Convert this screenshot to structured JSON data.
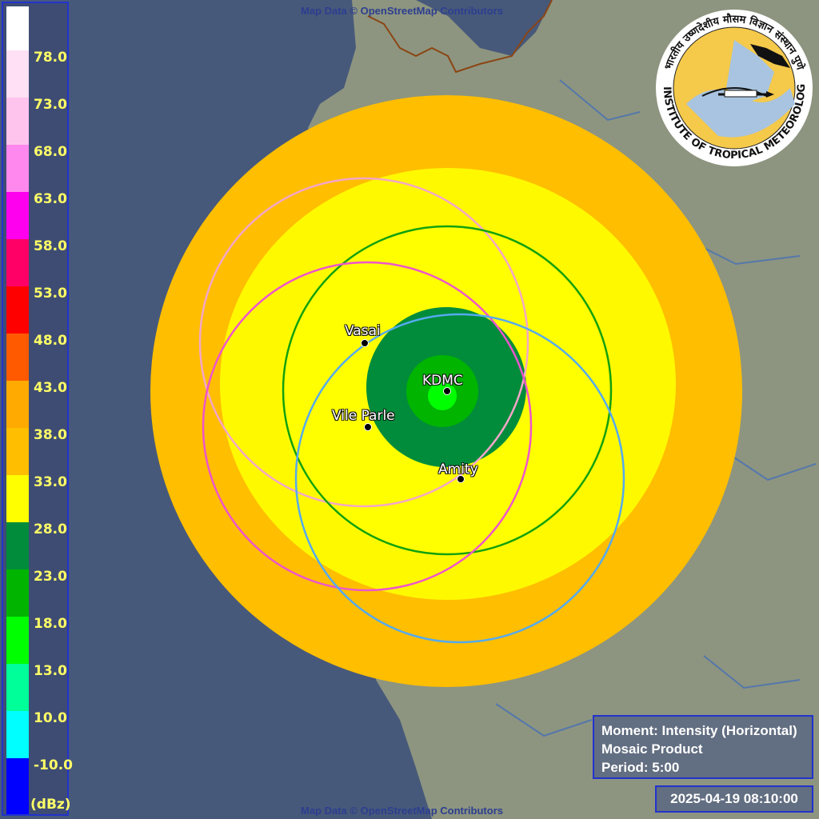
{
  "attribution": "Map Data © OpenStreetMap Contributors",
  "legend": {
    "unit": "(dBz)",
    "levels": [
      {
        "label": "78.0",
        "color": "#ffffff"
      },
      {
        "label": "73.0",
        "color": "#ffe0f4"
      },
      {
        "label": "68.0",
        "color": "#ffc4ee"
      },
      {
        "label": "63.0",
        "color": "#ff88ee"
      },
      {
        "label": "58.0",
        "color": "#ff00ee"
      },
      {
        "label": "53.0",
        "color": "#ff0066"
      },
      {
        "label": "48.0",
        "color": "#ff0000"
      },
      {
        "label": "43.0",
        "color": "#ff5a00"
      },
      {
        "label": "38.0",
        "color": "#ffaa00"
      },
      {
        "label": "33.0",
        "color": "#ffbe00"
      },
      {
        "label": "28.0",
        "color": "#ffff00"
      },
      {
        "label": "23.0",
        "color": "#008c3a"
      },
      {
        "label": "18.0",
        "color": "#00b400"
      },
      {
        "label": "13.0",
        "color": "#00ff00"
      },
      {
        "label": "10.0",
        "color": "#00ff99"
      },
      {
        "label": "-10.0",
        "color": "#00ffff"
      },
      {
        "label": "",
        "color": "#0000ff"
      }
    ]
  },
  "sites": [
    {
      "name": "Vasai",
      "ring_color": "#f4a6c8"
    },
    {
      "name": "KDMC",
      "ring_color": "#13a10e"
    },
    {
      "name": "Vile Parle",
      "ring_color": "#ee55cc"
    },
    {
      "name": "Amity",
      "ring_color": "#55aaee"
    }
  ],
  "info": {
    "moment": "Moment: Intensity (Horizontal)",
    "product": "Mosaic Product",
    "period": "Period: 5:00"
  },
  "timestamp": "2025-04-19 08:10:00",
  "logo": {
    "org": "INDIAN INSTITUTE OF TROPICAL METEOROLOGY PUNE",
    "hindi": "भारतीय उष्णदेशीय मौसम विज्ञान संस्थान पुणे"
  }
}
